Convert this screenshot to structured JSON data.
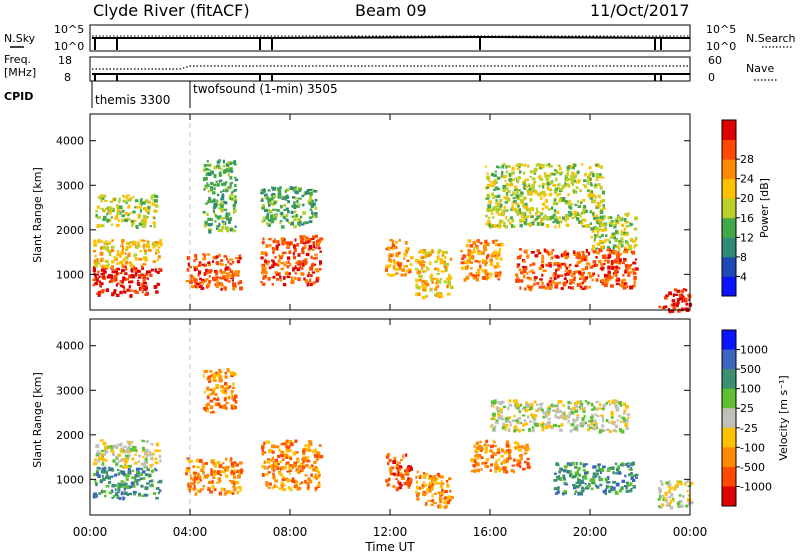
{
  "header": {
    "station": "Clyde River (fitACF)",
    "beam": "Beam 09",
    "date": "11/Oct/2017"
  },
  "strip": {
    "nsky_label": "N.Sky",
    "nsky_tick_top": "10^5",
    "nsky_tick_bottom": "10^0",
    "nsearch_label": "N.Search",
    "nsearch_tick_top": "10^5",
    "nsearch_tick_bottom": "10^0",
    "freq_label_1": "Freq.",
    "freq_label_2": "[MHz]",
    "freq_tick_top": "18",
    "freq_tick_bottom": "8",
    "nave_label": "Nave",
    "nave_tick_top": "60",
    "nave_tick_bottom": "0",
    "cpid_label": "CPID",
    "cpid_1": "themis 3300",
    "cpid_2": "twofsound (1-min) 3505"
  },
  "chart_data": [
    {
      "type": "heatmap",
      "name": "power",
      "ylabel": "Slant Range [km]",
      "yticks": [
        "1000",
        "2000",
        "3000",
        "4000"
      ],
      "ylim": [
        200,
        4600
      ],
      "xlim_hours": [
        0,
        24
      ],
      "colorbar_label": "Power [dB]",
      "colorbar_ticks": [
        "4",
        "8",
        "12",
        "16",
        "20",
        "24",
        "28"
      ],
      "colorbar_colors": [
        "#0a14ff",
        "#1e4ab8",
        "#2f8a76",
        "#44a84a",
        "#b8d028",
        "#ffc000",
        "#ff8a00",
        "#ff4a00",
        "#e00000"
      ],
      "regions": [
        {
          "t": [
            0.1,
            2.8
          ],
          "r": [
            550,
            1200
          ],
          "level": 8
        },
        {
          "t": [
            0.1,
            2.8
          ],
          "r": [
            1200,
            1800
          ],
          "level": 5
        },
        {
          "t": [
            0.2,
            2.6
          ],
          "r": [
            2100,
            2800
          ],
          "level": 4
        },
        {
          "t": [
            3.8,
            6.0
          ],
          "r": [
            700,
            1500
          ],
          "level": 7
        },
        {
          "t": [
            4.5,
            5.8
          ],
          "r": [
            2000,
            3600
          ],
          "level": 3
        },
        {
          "t": [
            6.8,
            9.2
          ],
          "r": [
            800,
            1900
          ],
          "level": 7
        },
        {
          "t": [
            6.8,
            9.0
          ],
          "r": [
            2100,
            3000
          ],
          "level": 3
        },
        {
          "t": [
            11.8,
            12.8
          ],
          "r": [
            1000,
            1800
          ],
          "level": 6
        },
        {
          "t": [
            13.0,
            14.4
          ],
          "r": [
            500,
            1600
          ],
          "level": 5
        },
        {
          "t": [
            14.8,
            16.4
          ],
          "r": [
            900,
            1800
          ],
          "level": 6
        },
        {
          "t": [
            15.8,
            20.5
          ],
          "r": [
            2100,
            3500
          ],
          "level": 4
        },
        {
          "t": [
            17.0,
            21.8
          ],
          "r": [
            700,
            1600
          ],
          "level": 7
        },
        {
          "t": [
            20.0,
            21.8
          ],
          "r": [
            1600,
            2400
          ],
          "level": 4
        },
        {
          "t": [
            22.7,
            24.0
          ],
          "r": [
            200,
            700
          ],
          "level": 8
        }
      ]
    },
    {
      "type": "heatmap",
      "name": "velocity",
      "ylabel": "Slant Range [km]",
      "yticks": [
        "1000",
        "2000",
        "3000",
        "4000"
      ],
      "ylim": [
        200,
        4600
      ],
      "xlim_hours": [
        0,
        24
      ],
      "xticks": [
        "00:00",
        "04:00",
        "08:00",
        "12:00",
        "16:00",
        "20:00",
        "00:00"
      ],
      "xlabel": "Time UT",
      "colorbar_label": "Velocity [m s⁻¹]",
      "colorbar_ticks": [
        "1000",
        "500",
        "100",
        "25",
        "-25",
        "-100",
        "-500",
        "-1000"
      ],
      "colorbar_colors": [
        "#0a14ff",
        "#3c64c0",
        "#3a9070",
        "#5cc030",
        "#c0c0b8",
        "#ffc000",
        "#ff8a00",
        "#ff4a00",
        "#e00000"
      ],
      "regions": [
        {
          "t": [
            0.1,
            2.8
          ],
          "r": [
            600,
            1300
          ],
          "level": 2
        },
        {
          "t": [
            0.1,
            2.8
          ],
          "r": [
            1300,
            1900
          ],
          "level": 4
        },
        {
          "t": [
            3.8,
            6.0
          ],
          "r": [
            700,
            1500
          ],
          "level": 6
        },
        {
          "t": [
            4.5,
            5.8
          ],
          "r": [
            2500,
            3500
          ],
          "level": 6
        },
        {
          "t": [
            6.8,
            9.2
          ],
          "r": [
            800,
            1900
          ],
          "level": 6
        },
        {
          "t": [
            11.8,
            12.8
          ],
          "r": [
            800,
            1600
          ],
          "level": 7
        },
        {
          "t": [
            13.0,
            14.4
          ],
          "r": [
            400,
            1200
          ],
          "level": 6
        },
        {
          "t": [
            15.2,
            17.5
          ],
          "r": [
            1200,
            1900
          ],
          "level": 6
        },
        {
          "t": [
            16.0,
            21.5
          ],
          "r": [
            2100,
            2800
          ],
          "level": 4
        },
        {
          "t": [
            18.5,
            21.8
          ],
          "r": [
            700,
            1400
          ],
          "level": 2
        },
        {
          "t": [
            22.7,
            24.0
          ],
          "r": [
            400,
            1000
          ],
          "level": 4
        }
      ]
    }
  ]
}
